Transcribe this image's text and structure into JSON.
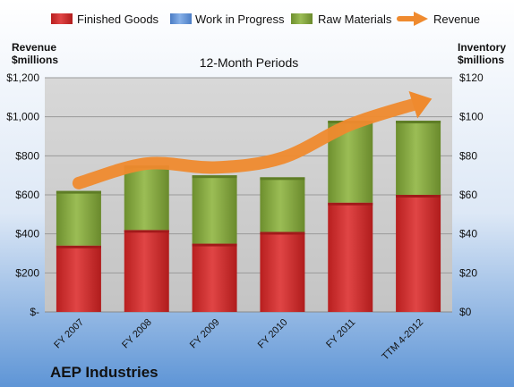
{
  "chart_data": {
    "type": "bar",
    "subtitle": "12-Month Periods",
    "company": "AEP Industries",
    "left_axis": {
      "title_line1": "Revenue",
      "title_line2": "$millions",
      "ylim": [
        0,
        1200
      ],
      "ticks": [
        "$-",
        "$200",
        "$400",
        "$600",
        "$800",
        "$1,000",
        "$1,200"
      ]
    },
    "right_axis": {
      "title_line1": "Inventory",
      "title_line2": "$millions",
      "ylim": [
        0,
        120
      ],
      "ticks": [
        "$0",
        "$20",
        "$40",
        "$60",
        "$80",
        "$100",
        "$120"
      ]
    },
    "categories": [
      "FY 2007",
      "FY 2008",
      "FY 2009",
      "FY 2010",
      "FY 2011",
      "TTM 4-2012"
    ],
    "series": [
      {
        "name": "Finished Goods",
        "kind": "stacked-bar",
        "axis": "right",
        "color": "#d32f2f",
        "values": [
          34,
          42,
          35,
          41,
          56,
          60
        ]
      },
      {
        "name": "Work in Progress",
        "kind": "stacked-bar",
        "axis": "right",
        "color": "#5b8fd8",
        "values": [
          0,
          0,
          0,
          0,
          0,
          0
        ]
      },
      {
        "name": "Raw Materials",
        "kind": "stacked-bar",
        "axis": "right",
        "color": "#7ea03a",
        "values": [
          28,
          33,
          35,
          28,
          42,
          38
        ]
      },
      {
        "name": "Revenue",
        "kind": "line-arrow",
        "axis": "left",
        "color": "#ef8a2e",
        "values": [
          660,
          760,
          740,
          790,
          960,
          1070
        ]
      }
    ],
    "grid": true,
    "legend_position": "top"
  }
}
